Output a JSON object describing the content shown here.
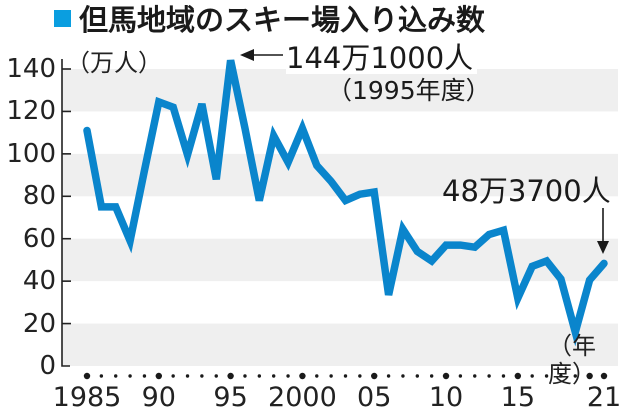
{
  "title": {
    "marker_color": "#0a9ee0",
    "text": "但馬地域のスキー場入り込み数"
  },
  "axes": {
    "y_unit": "（万人）",
    "x_unit": "（年度）",
    "y_ticks": [
      "0",
      "20",
      "40",
      "60",
      "80",
      "100",
      "120",
      "140"
    ],
    "x_tick_labels": [
      {
        "year": 1985,
        "label": "1985"
      },
      {
        "year": 1990,
        "label": "90"
      },
      {
        "year": 1995,
        "label": "95"
      },
      {
        "year": 2000,
        "label": "2000"
      },
      {
        "year": 2005,
        "label": "05"
      },
      {
        "year": 2010,
        "label": "10"
      },
      {
        "year": 2015,
        "label": "15"
      },
      {
        "year": 2021,
        "label": "21"
      }
    ]
  },
  "annotations": {
    "peak_value": "144万1000人",
    "peak_year": "（1995年度）",
    "latest_value": "48万3700人"
  },
  "colors": {
    "line": "#0a85cc",
    "band": "#efefef",
    "axis": "#222222"
  },
  "chart_data": {
    "type": "line",
    "title": "但馬地域のスキー場入り込み数",
    "xlabel": "年度",
    "ylabel": "万人",
    "ylim": [
      0,
      140
    ],
    "xlim": [
      1985,
      2021
    ],
    "grid": "alternating horizontal bands every 20",
    "legend": "none",
    "x": [
      1985,
      1986,
      1987,
      1988,
      1989,
      1990,
      1991,
      1992,
      1993,
      1994,
      1995,
      1996,
      1997,
      1998,
      1999,
      2000,
      2001,
      2002,
      2003,
      2004,
      2005,
      2006,
      2007,
      2008,
      2009,
      2010,
      2011,
      2012,
      2013,
      2014,
      2015,
      2016,
      2017,
      2018,
      2019,
      2020,
      2021
    ],
    "series": [
      {
        "name": "入り込み数（万人）",
        "values": [
          111,
          75,
          75,
          59,
          92,
          124.5,
          122,
          99.5,
          123.5,
          88,
          144.1,
          112,
          78,
          108.5,
          96,
          112,
          94.5,
          87,
          78,
          81,
          82,
          33.5,
          64.5,
          54,
          49.5,
          57,
          57,
          56,
          62,
          64,
          32,
          47,
          49.5,
          41,
          16,
          40.5,
          48.37
        ]
      }
    ],
    "annotations": [
      {
        "x": 1995,
        "y": 144.1,
        "text": "144万1000人（1995年度）"
      },
      {
        "x": 2021,
        "y": 48.37,
        "text": "48万3700人"
      }
    ]
  }
}
